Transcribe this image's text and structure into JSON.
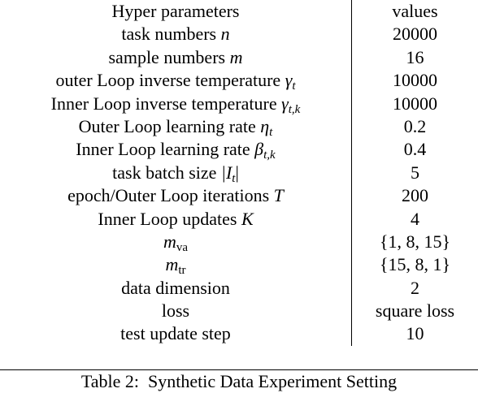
{
  "table": {
    "header": [
      "Hyper parameters",
      "values"
    ],
    "rows": [
      {
        "label": "task numbers",
        "symbol": "n",
        "value": 20000
      },
      {
        "label": "sample numbers",
        "symbol": "m",
        "value": 16
      },
      {
        "label": "outer Loop inverse temperature",
        "symbol": "γ",
        "sub": "t",
        "value": 10000
      },
      {
        "label": "Inner Loop inverse temperature",
        "symbol": "γ",
        "sub": "t,k",
        "value": 10000
      },
      {
        "label": "Outer Loop learning rate",
        "symbol": "η",
        "sub": "t",
        "value": 0.2
      },
      {
        "label": "Inner Loop learning rate",
        "symbol": "β",
        "sub": "t,k",
        "value": 0.4
      },
      {
        "label": "task batch size",
        "symbol": "|I",
        "sub": "t",
        "after": "|",
        "value": 5
      },
      {
        "label": "epoch/Outer Loop iterations",
        "symbol": "T",
        "value": 200
      },
      {
        "label": "Inner Loop updates",
        "symbol": "K",
        "value": 4
      },
      {
        "symbol": "m",
        "sub": "va",
        "value": "{1, 8, 15}"
      },
      {
        "symbol": "m",
        "sub": "tr",
        "value": "{15, 8, 1}"
      },
      {
        "label": "data dimension",
        "value": 2
      },
      {
        "label": "loss",
        "value": "square loss"
      },
      {
        "label": "test update step",
        "value": 10
      }
    ],
    "caption": "Table 2:  Synthetic Data Experiment Setting"
  }
}
